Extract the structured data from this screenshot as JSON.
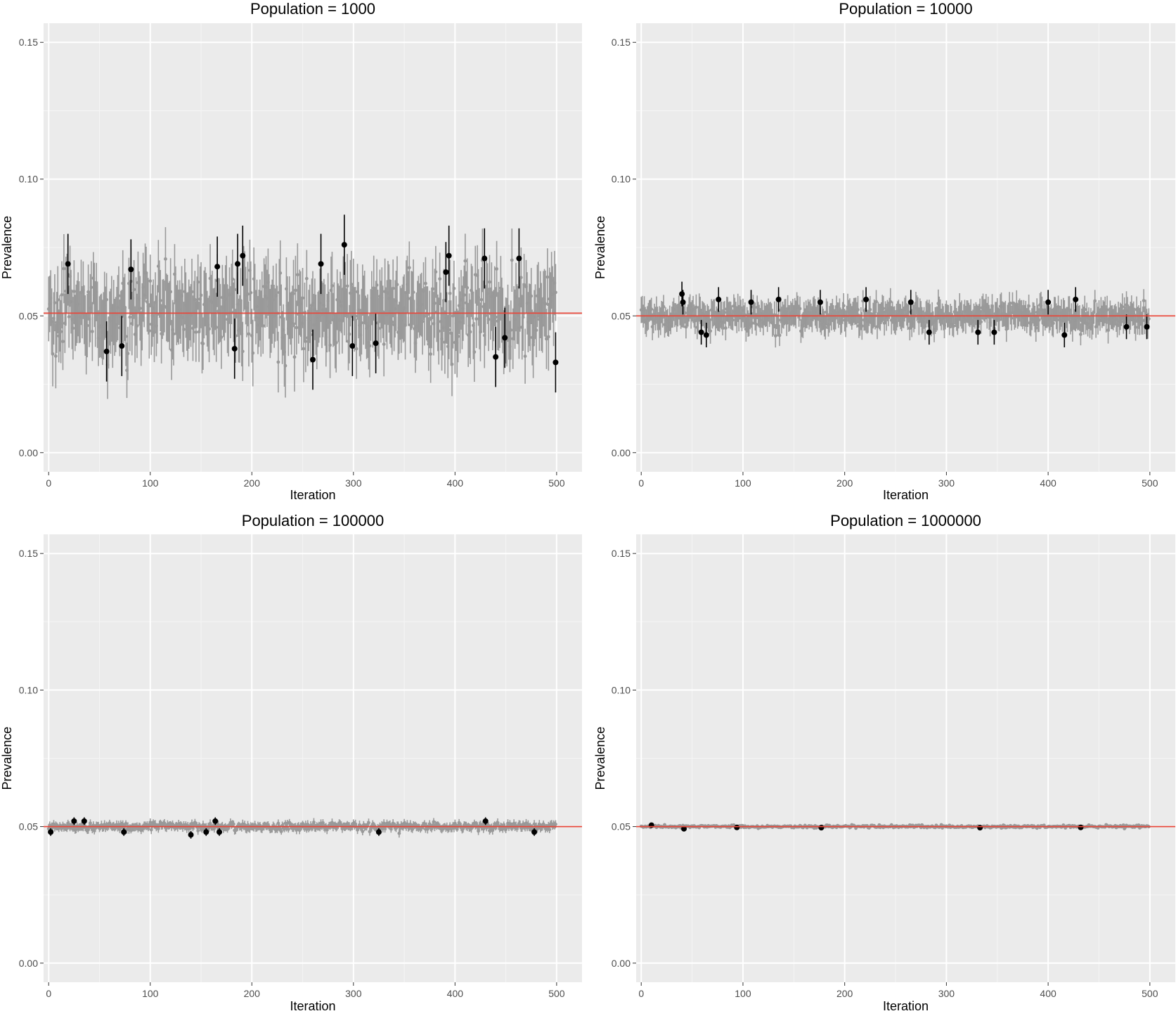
{
  "colors": {
    "panel_bg": "#ebebeb",
    "grid_major": "#ffffff",
    "grid_minor": "#f5f5f5",
    "ci_gray": "#999999",
    "point_black": "#000000",
    "reference_red": "#e8483b"
  },
  "chart_data": [
    {
      "type": "scatter",
      "title": "Population = 1000",
      "xlabel": "Iteration",
      "ylabel": "Prevalence",
      "xlim": [
        -5,
        525
      ],
      "ylim": [
        -0.007,
        0.157
      ],
      "x_ticks": [
        0,
        100,
        200,
        300,
        400,
        500
      ],
      "x_tick_labels": [
        "0",
        "100",
        "200",
        "300",
        "400",
        "500"
      ],
      "y_ticks": [
        0,
        0.05,
        0.1,
        0.15
      ],
      "y_tick_labels": [
        "0.00",
        "0.05",
        "0.10",
        "0.15"
      ],
      "grid": true,
      "reference_line": 0.051,
      "n_iterations": 500,
      "band_center": 0.051,
      "band_spread": 0.007,
      "ci_half_width": 0.011,
      "outliers": [
        {
          "x": 19,
          "y": 0.069
        },
        {
          "x": 57,
          "y": 0.037
        },
        {
          "x": 72,
          "y": 0.039
        },
        {
          "x": 81,
          "y": 0.067
        },
        {
          "x": 166,
          "y": 0.068
        },
        {
          "x": 183,
          "y": 0.038
        },
        {
          "x": 186,
          "y": 0.069
        },
        {
          "x": 191,
          "y": 0.072
        },
        {
          "x": 260,
          "y": 0.034
        },
        {
          "x": 268,
          "y": 0.069
        },
        {
          "x": 291,
          "y": 0.076
        },
        {
          "x": 299,
          "y": 0.039
        },
        {
          "x": 322,
          "y": 0.04
        },
        {
          "x": 391,
          "y": 0.066
        },
        {
          "x": 394,
          "y": 0.072
        },
        {
          "x": 429,
          "y": 0.071
        },
        {
          "x": 440,
          "y": 0.035
        },
        {
          "x": 449,
          "y": 0.042
        },
        {
          "x": 463,
          "y": 0.071
        },
        {
          "x": 499,
          "y": 0.033
        }
      ]
    },
    {
      "type": "scatter",
      "title": "Population = 10000",
      "xlabel": "Iteration",
      "ylabel": "Prevalence",
      "xlim": [
        -5,
        525
      ],
      "ylim": [
        -0.007,
        0.157
      ],
      "x_ticks": [
        0,
        100,
        200,
        300,
        400,
        500
      ],
      "x_tick_labels": [
        "0",
        "100",
        "200",
        "300",
        "400",
        "500"
      ],
      "y_ticks": [
        0,
        0.05,
        0.1,
        0.15
      ],
      "y_tick_labels": [
        "0.00",
        "0.05",
        "0.10",
        "0.15"
      ],
      "grid": true,
      "reference_line": 0.05,
      "n_iterations": 500,
      "band_center": 0.05,
      "band_spread": 0.0022,
      "ci_half_width": 0.0045,
      "outliers": [
        {
          "x": 40,
          "y": 0.058
        },
        {
          "x": 41,
          "y": 0.055
        },
        {
          "x": 59,
          "y": 0.044
        },
        {
          "x": 64,
          "y": 0.043
        },
        {
          "x": 76,
          "y": 0.056
        },
        {
          "x": 108,
          "y": 0.055
        },
        {
          "x": 135,
          "y": 0.056
        },
        {
          "x": 176,
          "y": 0.055
        },
        {
          "x": 221,
          "y": 0.056
        },
        {
          "x": 265,
          "y": 0.055
        },
        {
          "x": 283,
          "y": 0.044
        },
        {
          "x": 331,
          "y": 0.044
        },
        {
          "x": 347,
          "y": 0.044
        },
        {
          "x": 400,
          "y": 0.055
        },
        {
          "x": 416,
          "y": 0.043
        },
        {
          "x": 427,
          "y": 0.056
        },
        {
          "x": 477,
          "y": 0.046
        },
        {
          "x": 497,
          "y": 0.046
        }
      ]
    },
    {
      "type": "scatter",
      "title": "Population = 100000",
      "xlabel": "Iteration",
      "ylabel": "Prevalence",
      "xlim": [
        -5,
        525
      ],
      "ylim": [
        -0.007,
        0.157
      ],
      "x_ticks": [
        0,
        100,
        200,
        300,
        400,
        500
      ],
      "x_tick_labels": [
        "0",
        "100",
        "200",
        "300",
        "400",
        "500"
      ],
      "y_ticks": [
        0,
        0.05,
        0.1,
        0.15
      ],
      "y_tick_labels": [
        "0.00",
        "0.05",
        "0.10",
        "0.15"
      ],
      "grid": true,
      "reference_line": 0.05,
      "n_iterations": 500,
      "band_center": 0.05,
      "band_spread": 0.0007,
      "ci_half_width": 0.0014,
      "outliers": [
        {
          "x": 2,
          "y": 0.048
        },
        {
          "x": 25,
          "y": 0.052
        },
        {
          "x": 35,
          "y": 0.052
        },
        {
          "x": 74,
          "y": 0.048
        },
        {
          "x": 140,
          "y": 0.047
        },
        {
          "x": 155,
          "y": 0.048
        },
        {
          "x": 164,
          "y": 0.052
        },
        {
          "x": 168,
          "y": 0.048
        },
        {
          "x": 325,
          "y": 0.048
        },
        {
          "x": 430,
          "y": 0.052
        },
        {
          "x": 478,
          "y": 0.048
        }
      ]
    },
    {
      "type": "scatter",
      "title": "Population = 1000000",
      "xlabel": "Iteration",
      "ylabel": "Prevalence",
      "xlim": [
        -5,
        525
      ],
      "ylim": [
        -0.007,
        0.157
      ],
      "x_ticks": [
        0,
        100,
        200,
        300,
        400,
        500
      ],
      "x_tick_labels": [
        "0",
        "100",
        "200",
        "300",
        "400",
        "500"
      ],
      "y_ticks": [
        0,
        0.05,
        0.1,
        0.15
      ],
      "y_tick_labels": [
        "0.00",
        "0.05",
        "0.10",
        "0.15"
      ],
      "grid": true,
      "reference_line": 0.05,
      "n_iterations": 500,
      "band_center": 0.05,
      "band_spread": 0.00025,
      "ci_half_width": 0.00045,
      "outliers": [
        {
          "x": 10,
          "y": 0.0505
        },
        {
          "x": 42,
          "y": 0.0492
        },
        {
          "x": 94,
          "y": 0.0497
        },
        {
          "x": 177,
          "y": 0.0496
        },
        {
          "x": 333,
          "y": 0.0496
        },
        {
          "x": 432,
          "y": 0.0497
        }
      ]
    }
  ]
}
